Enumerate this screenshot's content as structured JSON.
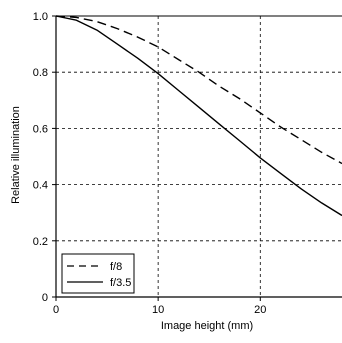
{
  "chart_data": {
    "type": "line",
    "xlabel": "Image height (mm)",
    "ylabel": "Relative illumination",
    "xlim": [
      0,
      28
    ],
    "ylim": [
      0,
      1.0
    ],
    "x_ticks": [
      0,
      10,
      20
    ],
    "x_tick_labels": [
      "0",
      "10",
      "20"
    ],
    "y_ticks": [
      0,
      0.2,
      0.4,
      0.6,
      0.8,
      1.0
    ],
    "y_tick_labels": [
      "0",
      "0.2",
      "0.4",
      "0.6",
      "0.8",
      "1.0"
    ],
    "grid": true,
    "legend_position": "bottom-left",
    "series": [
      {
        "name": "f/8",
        "line_style": "dashed",
        "color": "#000000",
        "x": [
          0,
          2,
          4,
          6,
          8,
          10,
          12,
          14,
          16,
          18,
          20,
          22,
          24,
          26,
          28
        ],
        "y": [
          1.0,
          0.995,
          0.98,
          0.955,
          0.925,
          0.89,
          0.845,
          0.8,
          0.75,
          0.705,
          0.655,
          0.605,
          0.56,
          0.515,
          0.475
        ]
      },
      {
        "name": "f/3.5",
        "line_style": "solid",
        "color": "#000000",
        "x": [
          0,
          2,
          4,
          6,
          8,
          10,
          12,
          14,
          16,
          18,
          20,
          22,
          24,
          26,
          28
        ],
        "y": [
          1.0,
          0.985,
          0.95,
          0.9,
          0.85,
          0.795,
          0.735,
          0.675,
          0.615,
          0.555,
          0.495,
          0.44,
          0.385,
          0.335,
          0.29
        ]
      }
    ]
  }
}
